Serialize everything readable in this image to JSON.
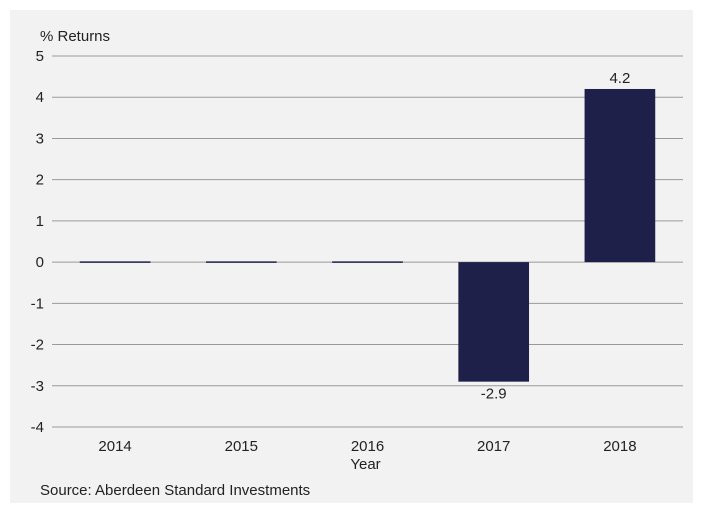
{
  "chart_data": {
    "type": "bar",
    "title": "",
    "ylabel": "% Returns",
    "xlabel": "Year",
    "categories": [
      "2014",
      "2015",
      "2016",
      "2017",
      "2018"
    ],
    "values": [
      0,
      0,
      0,
      -2.9,
      4.2
    ],
    "data_labels": [
      "",
      "",
      "",
      "-2.9",
      "4.2"
    ],
    "ylim": [
      -4,
      5
    ],
    "yticks": [
      "5",
      "4",
      "3",
      "2",
      "1",
      "0",
      "-1",
      "-2",
      "-3",
      "-4"
    ],
    "grid": true,
    "bar_color": "#1e2049"
  },
  "source": "Source: Aberdeen Standard Investments"
}
